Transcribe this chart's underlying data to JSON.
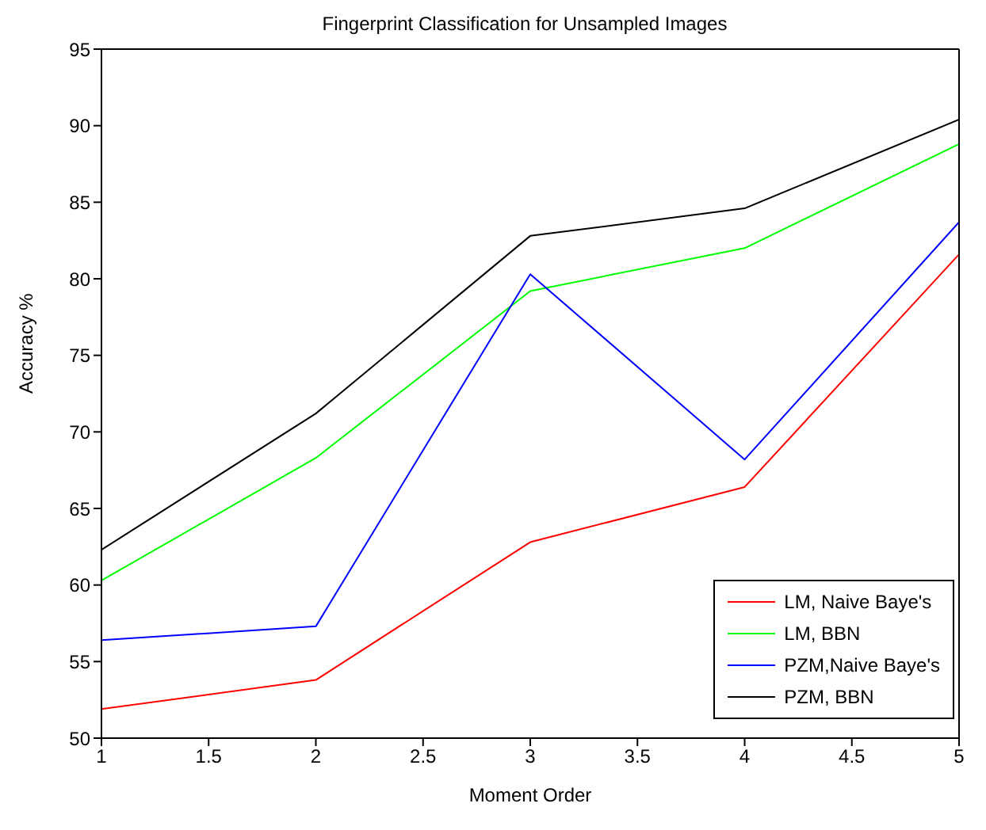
{
  "chart_data": {
    "type": "line",
    "title": "Fingerprint Classification for Unsampled Images",
    "xlabel": "Moment Order",
    "ylabel": "Accuracy %",
    "x": [
      1,
      2,
      3,
      4,
      5
    ],
    "series": [
      {
        "name": "LM, Naive Baye's",
        "color": "#ff0000",
        "values": [
          51.9,
          53.8,
          62.8,
          66.4,
          81.6
        ]
      },
      {
        "name": "LM, BBN",
        "color": "#00ff00",
        "values": [
          60.3,
          68.3,
          79.2,
          82.0,
          88.8
        ]
      },
      {
        "name": "PZM,Naive Baye's",
        "color": "#0000ff",
        "values": [
          56.4,
          57.3,
          80.3,
          68.2,
          83.7
        ]
      },
      {
        "name": "PZM, BBN",
        "color": "#000000",
        "values": [
          62.3,
          71.2,
          82.8,
          84.6,
          90.4
        ]
      }
    ],
    "xlim": [
      1,
      5
    ],
    "xticks": [
      1,
      1.5,
      2,
      2.5,
      3,
      3.5,
      4,
      4.5,
      5
    ],
    "ylim": [
      50,
      95
    ],
    "yticks": [
      50,
      55,
      60,
      65,
      70,
      75,
      80,
      85,
      90,
      95
    ],
    "grid": false,
    "legend": "bottom right",
    "marker": "none",
    "line_style": "solid"
  }
}
